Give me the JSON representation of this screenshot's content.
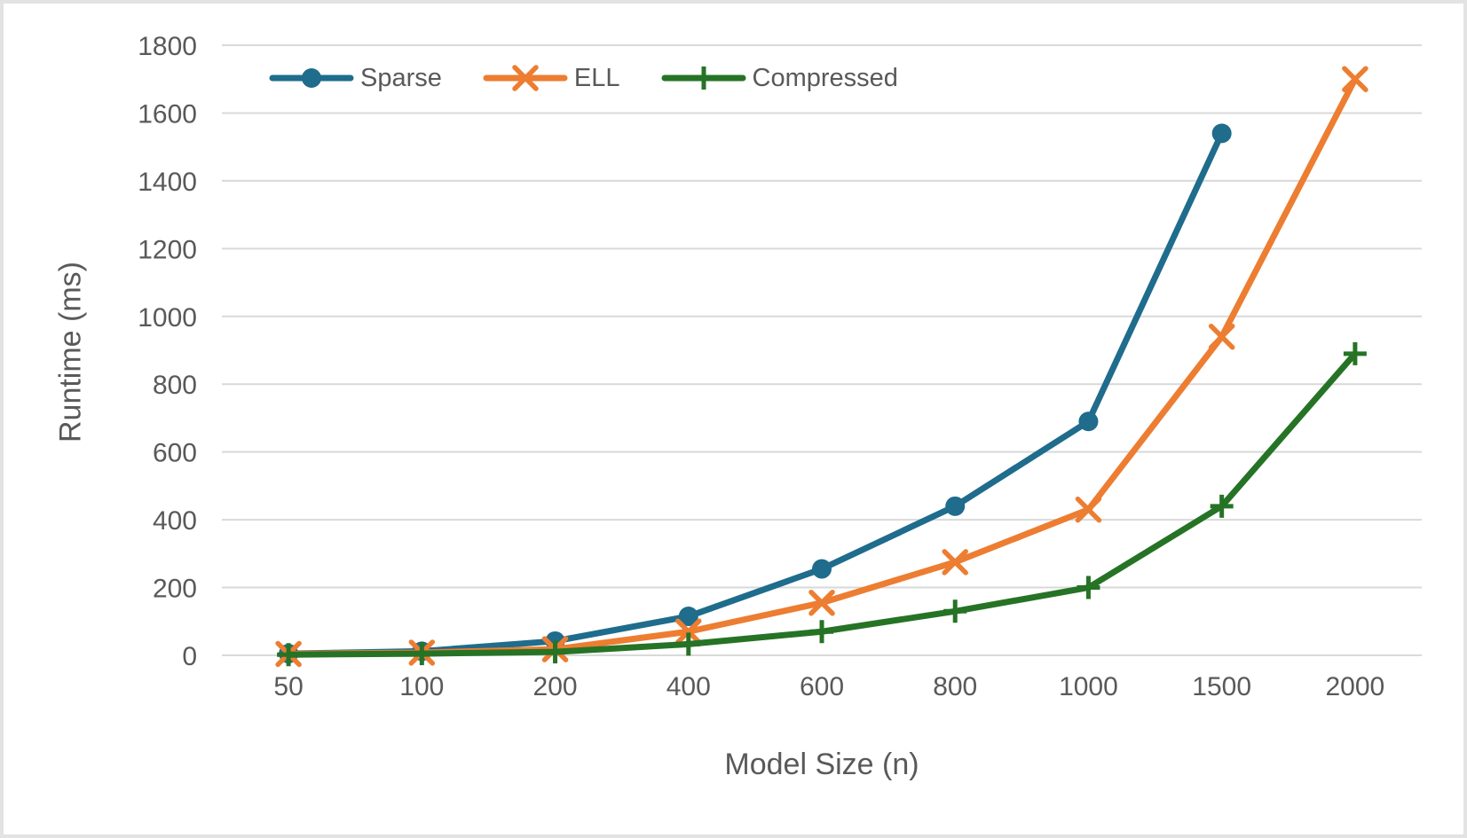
{
  "chart_data": {
    "type": "line",
    "title": "",
    "xlabel": "Model Size (n)",
    "ylabel": "Runtime (ms)",
    "x_axis_type": "categorical",
    "categories": [
      "50",
      "100",
      "200",
      "400",
      "600",
      "800",
      "1000",
      "1500",
      "2000"
    ],
    "ylim": [
      0,
      1800
    ],
    "ytick_step": 200,
    "grid": "horizontal",
    "legend_position": "top-left-inside",
    "series": [
      {
        "name": "Sparse",
        "marker": "circle",
        "color": "#1F6C8C",
        "values": [
          5,
          12,
          42,
          115,
          255,
          440,
          690,
          1540,
          null
        ]
      },
      {
        "name": "ELL",
        "marker": "x",
        "color": "#ED7D31",
        "values": [
          4,
          8,
          18,
          70,
          155,
          275,
          430,
          940,
          1700
        ]
      },
      {
        "name": "Compressed",
        "marker": "plus",
        "color": "#267326",
        "values": [
          2,
          5,
          10,
          33,
          70,
          130,
          200,
          440,
          890
        ]
      }
    ],
    "colors": {
      "text": "#595959",
      "gridline": "#D9D9D9",
      "background": "#FFFFFF",
      "frame_border": "#E3E3E3"
    }
  }
}
